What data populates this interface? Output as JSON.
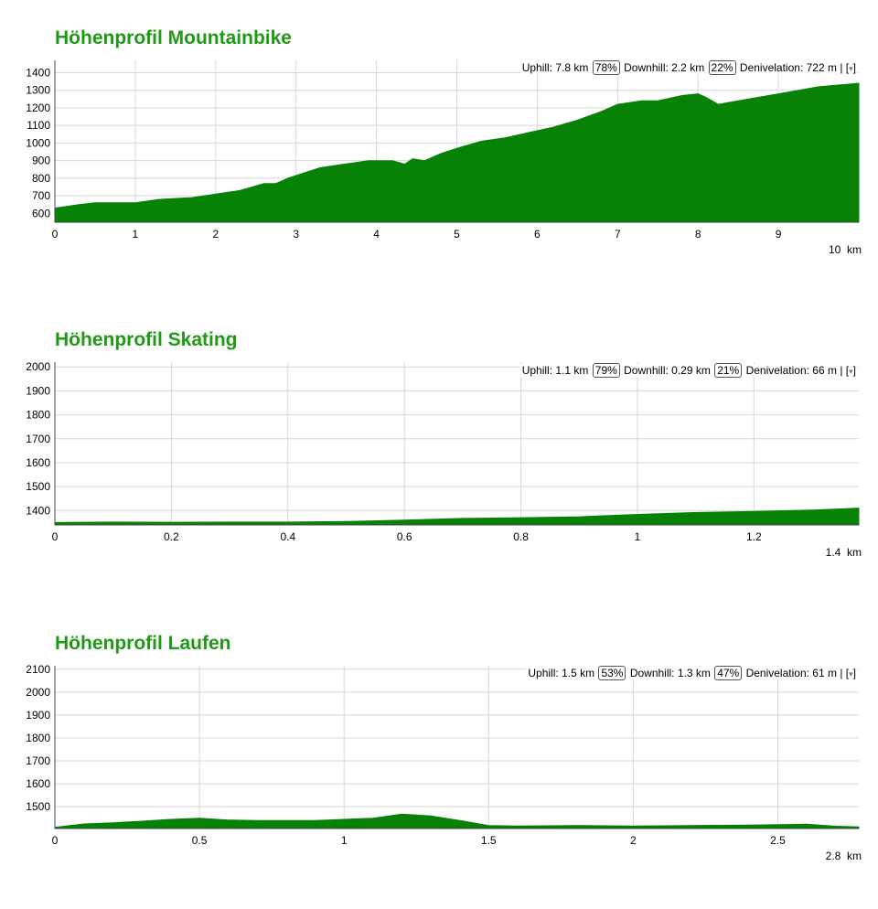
{
  "colors": {
    "title": "#1f9a14",
    "fill": "#078207",
    "grid": "#d8d8d8"
  },
  "menu_icon": "dropdown-caret",
  "profiles": [
    {
      "title": "Höhenprofil Mountainbike",
      "stats": {
        "uphill_label": "Uphill:",
        "uphill": "7.8 km",
        "uphill_pct": "78%",
        "downhill_label": "Downhill:",
        "downhill": "2.2 km",
        "downhill_pct": "22%",
        "deniv_label": "Denivelation:",
        "deniv": "722 m",
        "menu_open": "| [",
        "menu_caret": "▾",
        "menu_close": "]"
      },
      "distance_label": "10  km"
    },
    {
      "title": "Höhenprofil Skating",
      "stats": {
        "uphill_label": "Uphill:",
        "uphill": "1.1 km",
        "uphill_pct": "79%",
        "downhill_label": "Downhill:",
        "downhill": "0.29 km",
        "downhill_pct": "21%",
        "deniv_label": "Denivelation:",
        "deniv": "66 m",
        "menu_open": "| [",
        "menu_caret": "▾",
        "menu_close": "]"
      },
      "distance_label": "1.4  km"
    },
    {
      "title": "Höhenprofil Laufen",
      "stats": {
        "uphill_label": "Uphill:",
        "uphill": "1.5 km",
        "uphill_pct": "53%",
        "downhill_label": "Downhill:",
        "downhill": "1.3 km",
        "downhill_pct": "47%",
        "deniv_label": "Denivelation:",
        "deniv": "61 m",
        "menu_open": "| [",
        "menu_caret": "▾",
        "menu_close": "]"
      },
      "distance_label": "2.8  km"
    }
  ],
  "chart_data": [
    {
      "type": "area",
      "title": "Höhenprofil Mountainbike",
      "xlabel": "km",
      "ylabel": "",
      "xlim": [
        0,
        10
      ],
      "ylim": [
        550,
        1470
      ],
      "x_ticks": [
        "0",
        "1",
        "2",
        "3",
        "4",
        "5",
        "6",
        "7",
        "8",
        "9"
      ],
      "y_ticks": [
        "600",
        "700",
        "800",
        "900",
        "1000",
        "1100",
        "1200",
        "1300",
        "1400"
      ],
      "grid": true,
      "series": [
        {
          "x": [
            0,
            0.3,
            0.5,
            1.0,
            1.3,
            1.7,
            2.0,
            2.3,
            2.6,
            2.75,
            2.9,
            3.3,
            3.6,
            3.9,
            4.2,
            4.35,
            4.45,
            4.6,
            4.8,
            5.0,
            5.3,
            5.6,
            5.9,
            6.2,
            6.5,
            6.8,
            7.0,
            7.3,
            7.5,
            7.8,
            8.0,
            8.1,
            8.25,
            8.5,
            9.0,
            9.5,
            10.0
          ],
          "y": [
            630,
            650,
            660,
            660,
            680,
            690,
            710,
            730,
            770,
            770,
            800,
            860,
            880,
            900,
            900,
            880,
            910,
            900,
            940,
            970,
            1010,
            1030,
            1060,
            1090,
            1130,
            1180,
            1220,
            1240,
            1240,
            1270,
            1280,
            1260,
            1220,
            1240,
            1280,
            1320,
            1340
          ]
        }
      ]
    },
    {
      "type": "area",
      "title": "Höhenprofil Skating",
      "xlabel": "km",
      "ylabel": "",
      "xlim": [
        0,
        1.38
      ],
      "ylim": [
        1340,
        2020
      ],
      "x_ticks": [
        "0",
        "0.2",
        "0.4",
        "0.6",
        "0.8",
        "1",
        "1.2"
      ],
      "y_ticks": [
        "1400",
        "1500",
        "1600",
        "1700",
        "1800",
        "1900",
        "2000"
      ],
      "grid": true,
      "series": [
        {
          "x": [
            0,
            0.1,
            0.2,
            0.3,
            0.4,
            0.5,
            0.6,
            0.7,
            0.8,
            0.9,
            1.0,
            1.1,
            1.2,
            1.3,
            1.38
          ],
          "y": [
            1350,
            1352,
            1351,
            1352,
            1352,
            1354,
            1360,
            1367,
            1370,
            1374,
            1384,
            1392,
            1396,
            1402,
            1410
          ]
        }
      ]
    },
    {
      "type": "area",
      "title": "Höhenprofil Laufen",
      "xlabel": "km",
      "ylabel": "",
      "xlim": [
        0,
        2.78
      ],
      "ylim": [
        1405,
        2115
      ],
      "x_ticks": [
        "0",
        "0.5",
        "1",
        "1.5",
        "2",
        "2.5"
      ],
      "y_ticks": [
        "1500",
        "1600",
        "1700",
        "1800",
        "1900",
        "2000",
        "2100"
      ],
      "grid": true,
      "series": [
        {
          "x": [
            0,
            0.1,
            0.2,
            0.3,
            0.4,
            0.5,
            0.6,
            0.7,
            0.8,
            0.9,
            1.0,
            1.1,
            1.2,
            1.3,
            1.4,
            1.5,
            1.6,
            1.8,
            2.0,
            2.2,
            2.4,
            2.6,
            2.7,
            2.78
          ],
          "y": [
            1410,
            1425,
            1430,
            1437,
            1445,
            1450,
            1442,
            1440,
            1440,
            1440,
            1445,
            1450,
            1468,
            1460,
            1440,
            1418,
            1416,
            1418,
            1416,
            1418,
            1420,
            1424,
            1415,
            1412
          ]
        }
      ]
    }
  ]
}
